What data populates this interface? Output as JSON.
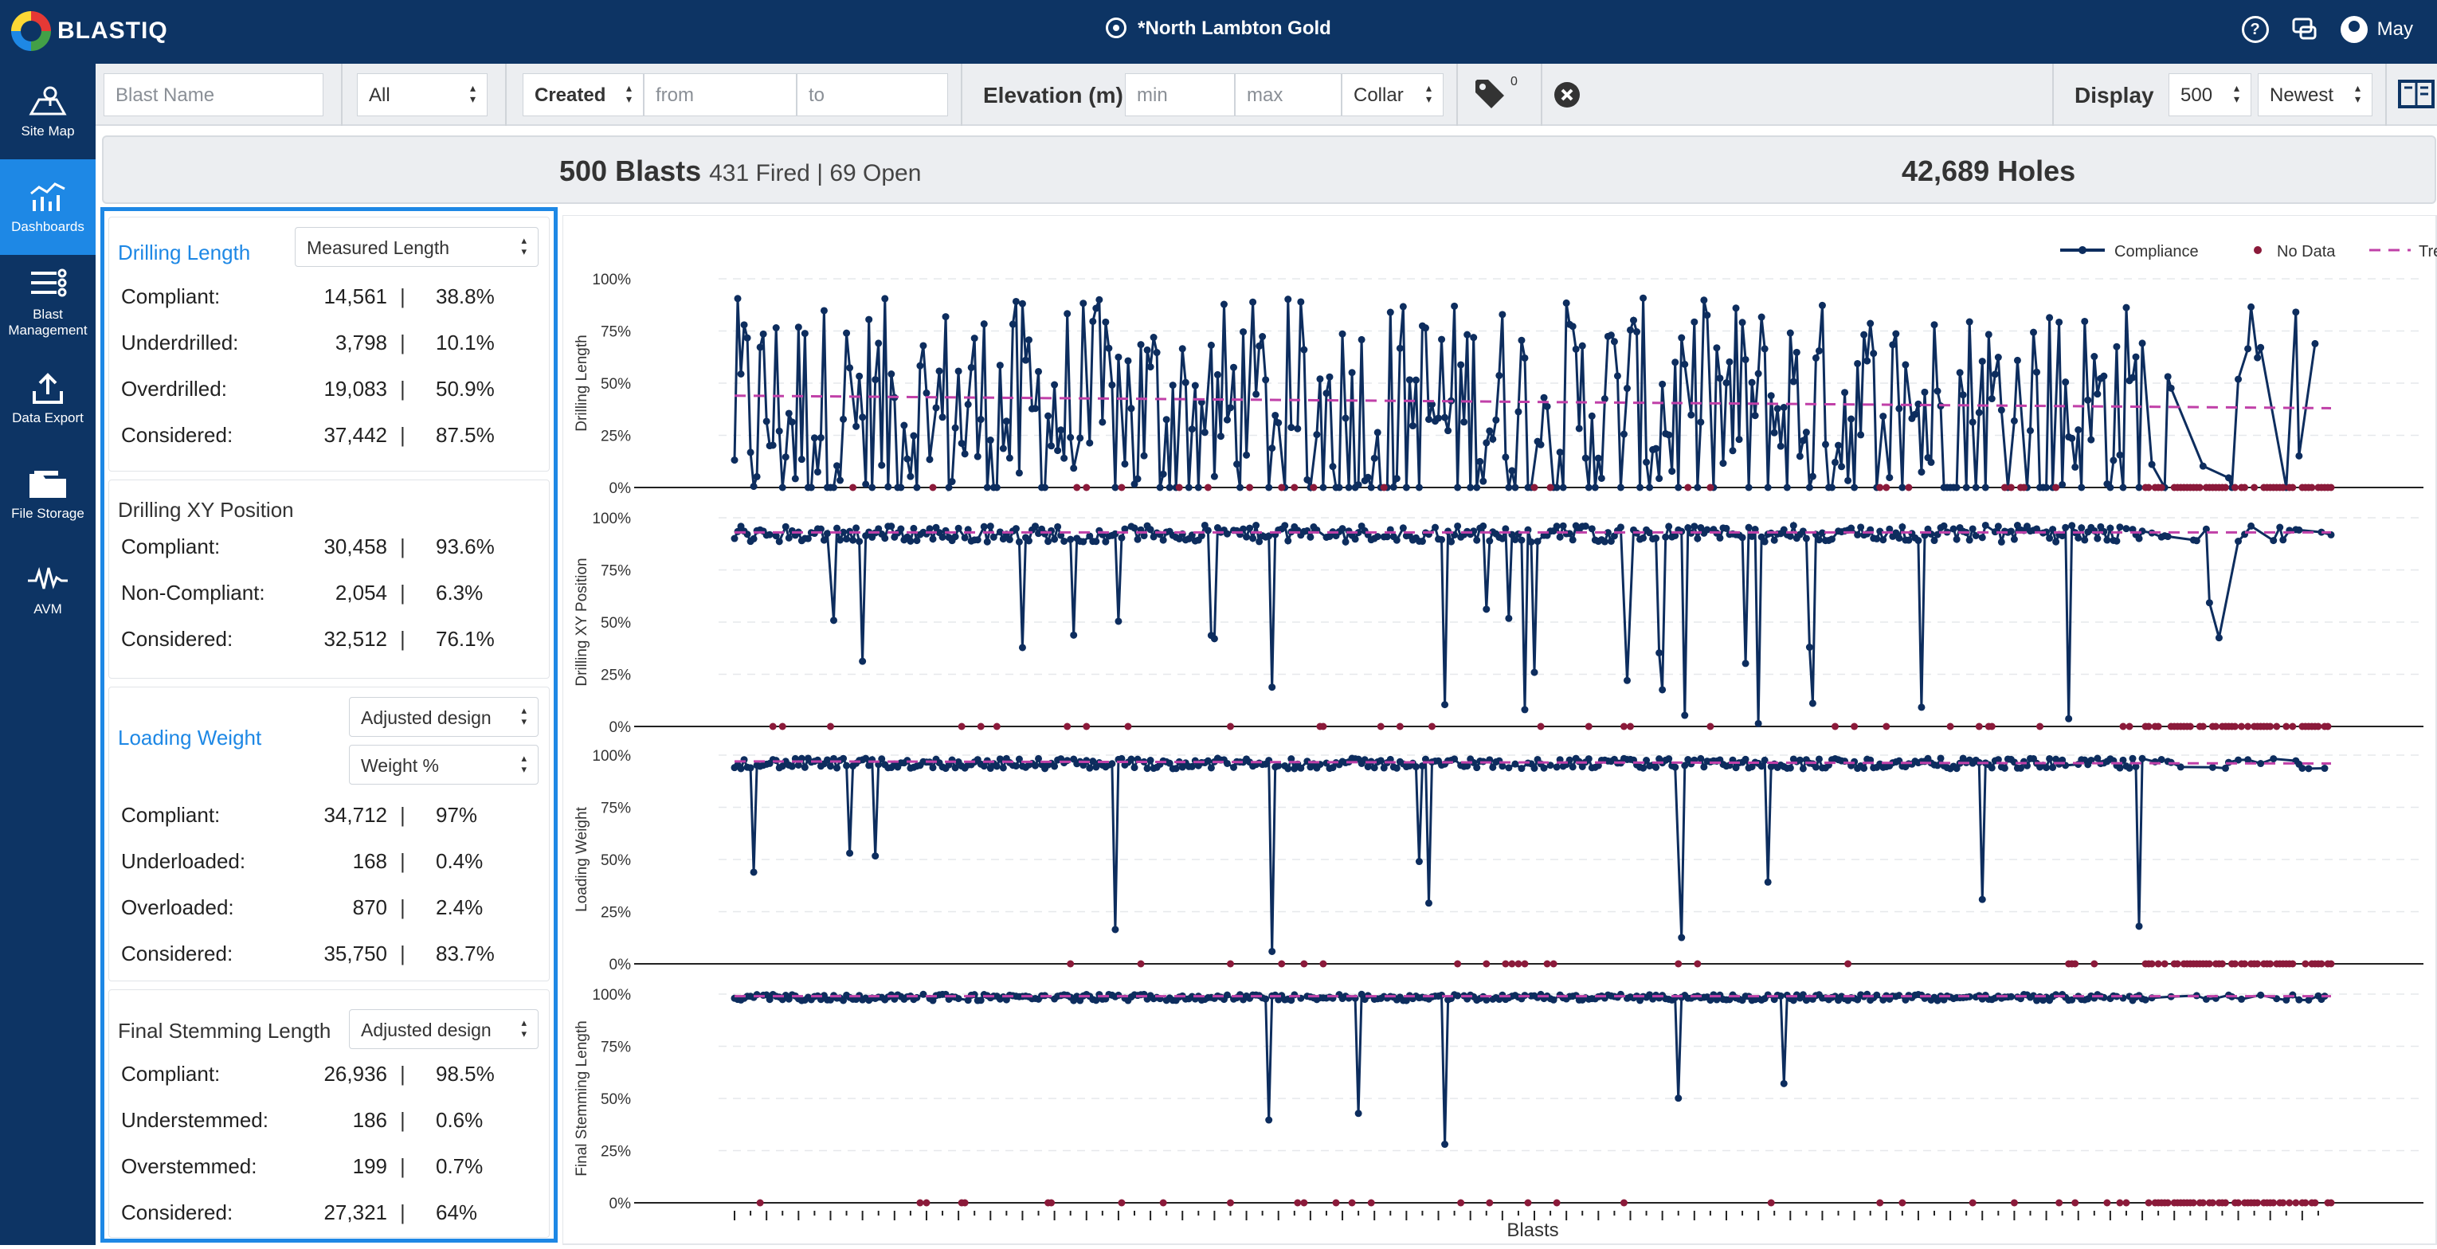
{
  "app": {
    "brand": "BLASTIQ",
    "site": "*North Lambton Gold",
    "user": "May",
    "help_glyph": "?"
  },
  "sidebar": {
    "items": [
      {
        "label": "Site Map",
        "icon": "map-icon"
      },
      {
        "label": "Dashboards",
        "icon": "dashboard-icon",
        "active": true
      },
      {
        "label": "Blast Management",
        "icon": "list-settings-icon"
      },
      {
        "label": "Data Export",
        "icon": "upload-icon"
      },
      {
        "label": "File Storage",
        "icon": "folder-icon"
      },
      {
        "label": "AVM",
        "icon": "waveform-icon"
      }
    ]
  },
  "filters": {
    "blast_name_placeholder": "Blast Name",
    "status": "All",
    "date_field": "Created",
    "from_placeholder": "from",
    "to_placeholder": "to",
    "elevation_label": "Elevation (m)",
    "min_placeholder": "min",
    "max_placeholder": "max",
    "elevation_ref": "Collar",
    "tag_count": "0",
    "display_label": "Display",
    "display_count": "500",
    "sort": "Newest"
  },
  "summary": {
    "blasts": "500 Blasts",
    "fired_open": "431 Fired | 69 Open",
    "holes": "42,689 Holes"
  },
  "stats": {
    "drilling_length": {
      "title": "Drilling Length",
      "select": "Measured Length",
      "rows": [
        {
          "label": "Compliant:",
          "count": "14,561",
          "pct": "38.8%"
        },
        {
          "label": "Underdrilled:",
          "count": "3,798",
          "pct": "10.1%"
        },
        {
          "label": "Overdrilled:",
          "count": "19,083",
          "pct": "50.9%"
        },
        {
          "label": "Considered:",
          "count": "37,442",
          "pct": "87.5%"
        }
      ]
    },
    "drilling_xy": {
      "title": "Drilling XY Position",
      "rows": [
        {
          "label": "Compliant:",
          "count": "30,458",
          "pct": "93.6%"
        },
        {
          "label": "Non-Compliant:",
          "count": "2,054",
          "pct": "6.3%"
        },
        {
          "label": "Considered:",
          "count": "32,512",
          "pct": "76.1%"
        }
      ]
    },
    "loading_weight": {
      "title": "Loading Weight",
      "select1": "Adjusted design",
      "select2": "Weight %",
      "rows": [
        {
          "label": "Compliant:",
          "count": "34,712",
          "pct": "97%"
        },
        {
          "label": "Underloaded:",
          "count": "168",
          "pct": "0.4%"
        },
        {
          "label": "Overloaded:",
          "count": "870",
          "pct": "2.4%"
        },
        {
          "label": "Considered:",
          "count": "35,750",
          "pct": "83.7%"
        }
      ]
    },
    "stemming": {
      "title": "Final Stemming Length",
      "select": "Adjusted design",
      "rows": [
        {
          "label": "Compliant:",
          "count": "26,936",
          "pct": "98.5%"
        },
        {
          "label": "Understemmed:",
          "count": "186",
          "pct": "0.6%"
        },
        {
          "label": "Overstemmed:",
          "count": "199",
          "pct": "0.7%"
        },
        {
          "label": "Considered:",
          "count": "27,321",
          "pct": "64%"
        }
      ]
    },
    "separator": "|"
  },
  "chart_data": {
    "type": "line",
    "xlabel": "Blasts",
    "legend": {
      "placement": "top-right",
      "entries": [
        "Compliance",
        "No Data",
        "Trend"
      ]
    },
    "colors": {
      "compliance": "#0d2d5e",
      "no_data": "#8b1a3a",
      "trend": "#c040a8"
    },
    "y_ticks": [
      "0%",
      "25%",
      "50%",
      "75%",
      "100%"
    ],
    "ylim": [
      0,
      100
    ],
    "x_count": 500,
    "panels": [
      {
        "ylabel": "Drilling Length",
        "trend": [
          44,
          38
        ],
        "base": 35,
        "spread": 35,
        "min_dips": 0,
        "dip_rate": 0.0
      },
      {
        "ylabel": "Drilling XY Position",
        "trend": [
          93,
          93
        ],
        "base": 94,
        "spread": 8,
        "dip_rate": 0.05
      },
      {
        "ylabel": "Loading Weight",
        "trend": [
          97,
          96
        ],
        "base": 97,
        "spread": 5,
        "dip_rate": 0.03
      },
      {
        "ylabel": "Final Stemming Length",
        "trend": [
          99,
          99
        ],
        "base": 99,
        "spread": 3,
        "dip_rate": 0.01
      }
    ]
  }
}
